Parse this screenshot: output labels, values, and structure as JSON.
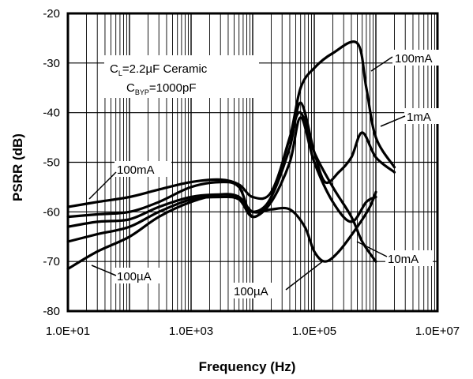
{
  "chart_data": {
    "type": "line",
    "xlabel": "Frequency (Hz)",
    "ylabel": "PSRR (dB)",
    "xscale": "log",
    "xlim": [
      10,
      10000000
    ],
    "ylim": [
      -80,
      -20
    ],
    "xticks": [
      10,
      1000,
      100000,
      10000000
    ],
    "xtick_labels": [
      "1.0E+01",
      "1.0E+03",
      "1.0E+05",
      "1.0E+07"
    ],
    "yticks": [
      -80,
      -70,
      -60,
      -50,
      -40,
      -30,
      -20
    ],
    "ytick_labels": [
      "-80",
      "-70",
      "-60",
      "-50",
      "-40",
      "-30",
      "-20"
    ],
    "grid": true,
    "conditions": {
      "cl_prefix": "C",
      "cl_sub": "L",
      "cl_rest": "=2.2µF Ceramic",
      "cbyp_prefix": "C",
      "cbyp_sub": "BYP",
      "cbyp_rest": "=1000pF"
    },
    "series_labels": {
      "s100mA_left": "100mA",
      "s100mA_right": "100mA",
      "s1mA": "1mA",
      "s10mA": "10mA",
      "s100uA_left": "100µA",
      "s100uA_bottom": "100µA"
    },
    "series": [
      {
        "name": "100mA",
        "x": [
          10,
          30,
          100,
          300,
          1000,
          3000,
          6000,
          10000,
          20000,
          40000,
          60000,
          100000,
          200000,
          500000,
          700000,
          1000000,
          2000000
        ],
        "y": [
          -59,
          -58,
          -57,
          -55.5,
          -54,
          -53.5,
          -54.5,
          -57,
          -56,
          -45,
          -35,
          -31,
          -28,
          -26,
          -35,
          -45,
          -51
        ]
      },
      {
        "name": "1mA",
        "x": [
          10,
          30,
          100,
          300,
          1000,
          3000,
          6000,
          10000,
          20000,
          40000,
          60000,
          100000,
          150000,
          250000,
          400000,
          600000,
          1000000,
          2000000
        ],
        "y": [
          -61,
          -60.5,
          -60,
          -58,
          -55,
          -54,
          -55,
          -61,
          -57,
          -47,
          -38,
          -48,
          -54,
          -52,
          -49,
          -44,
          -49,
          -52
        ]
      },
      {
        "name": "10mA",
        "x": [
          10,
          30,
          100,
          300,
          1000,
          3000,
          6000,
          10000,
          20000,
          40000,
          60000,
          100000,
          200000,
          400000,
          600000,
          1000000
        ],
        "y": [
          -63,
          -62,
          -61.5,
          -59,
          -57,
          -56.5,
          -57,
          -60,
          -57,
          -45,
          -40,
          -48,
          -55,
          -61,
          -66,
          -70
        ]
      },
      {
        "name": "100µA",
        "x": [
          10,
          30,
          100,
          300,
          1000,
          3000,
          6000,
          10000,
          20000,
          40000,
          70000,
          100000,
          150000,
          250000,
          500000,
          800000,
          1000000
        ],
        "y": [
          -71.5,
          -68,
          -65,
          -61,
          -58,
          -56.5,
          -57,
          -60,
          -59.5,
          -59.5,
          -63,
          -68,
          -70,
          -68,
          -63,
          -59,
          -56
        ]
      },
      {
        "name": "",
        "x": [
          10,
          30,
          100,
          300,
          1000,
          3000,
          6000,
          10000,
          20000,
          40000,
          60000,
          100000,
          200000,
          400000,
          700000,
          1000000
        ],
        "y": [
          -66,
          -64.5,
          -63,
          -60,
          -57.5,
          -57,
          -57.5,
          -61,
          -58,
          -50,
          -41,
          -50,
          -58,
          -62,
          -58,
          -57
        ]
      }
    ]
  }
}
